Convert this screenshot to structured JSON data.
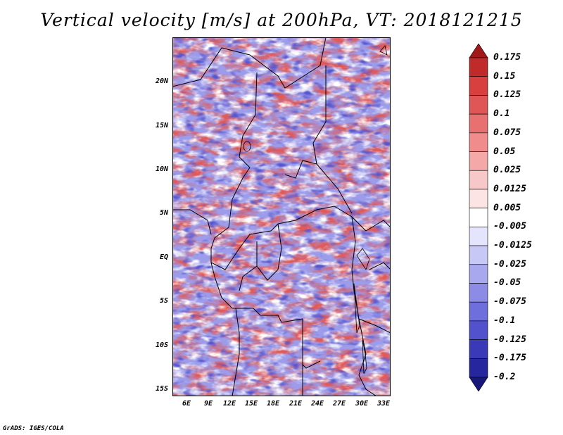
{
  "title": "Vertical velocity [m/s] at 200hPa, VT: 2018121215",
  "credit": "GrADS: IGES/COLA",
  "lat_labels": [
    "20N",
    "15N",
    "10N",
    "5N",
    "EQ",
    "5S",
    "10S",
    "15S"
  ],
  "lon_labels": [
    "6E",
    "9E",
    "12E",
    "15E",
    "18E",
    "21E",
    "24E",
    "27E",
    "30E",
    "33E"
  ],
  "colorbar": {
    "levels": [
      "0.175",
      "0.15",
      "0.125",
      "0.1",
      "0.075",
      "0.05",
      "0.025",
      "0.0125",
      "0.005",
      "-0.005",
      "-0.0125",
      "-0.025",
      "-0.05",
      "-0.075",
      "-0.1",
      "-0.125",
      "-0.175",
      "-0.2"
    ],
    "colors": [
      "#a01818",
      "#c02a2a",
      "#d84040",
      "#e05656",
      "#e87070",
      "#f08c8c",
      "#f4a8a8",
      "#f8c8c8",
      "#fce4e4",
      "#ffffff",
      "#e4e4fc",
      "#c8c8f6",
      "#a8a8ee",
      "#8c8ce6",
      "#6e6edc",
      "#5252cc",
      "#3a3ab8",
      "#26269e",
      "#18187a"
    ]
  }
}
